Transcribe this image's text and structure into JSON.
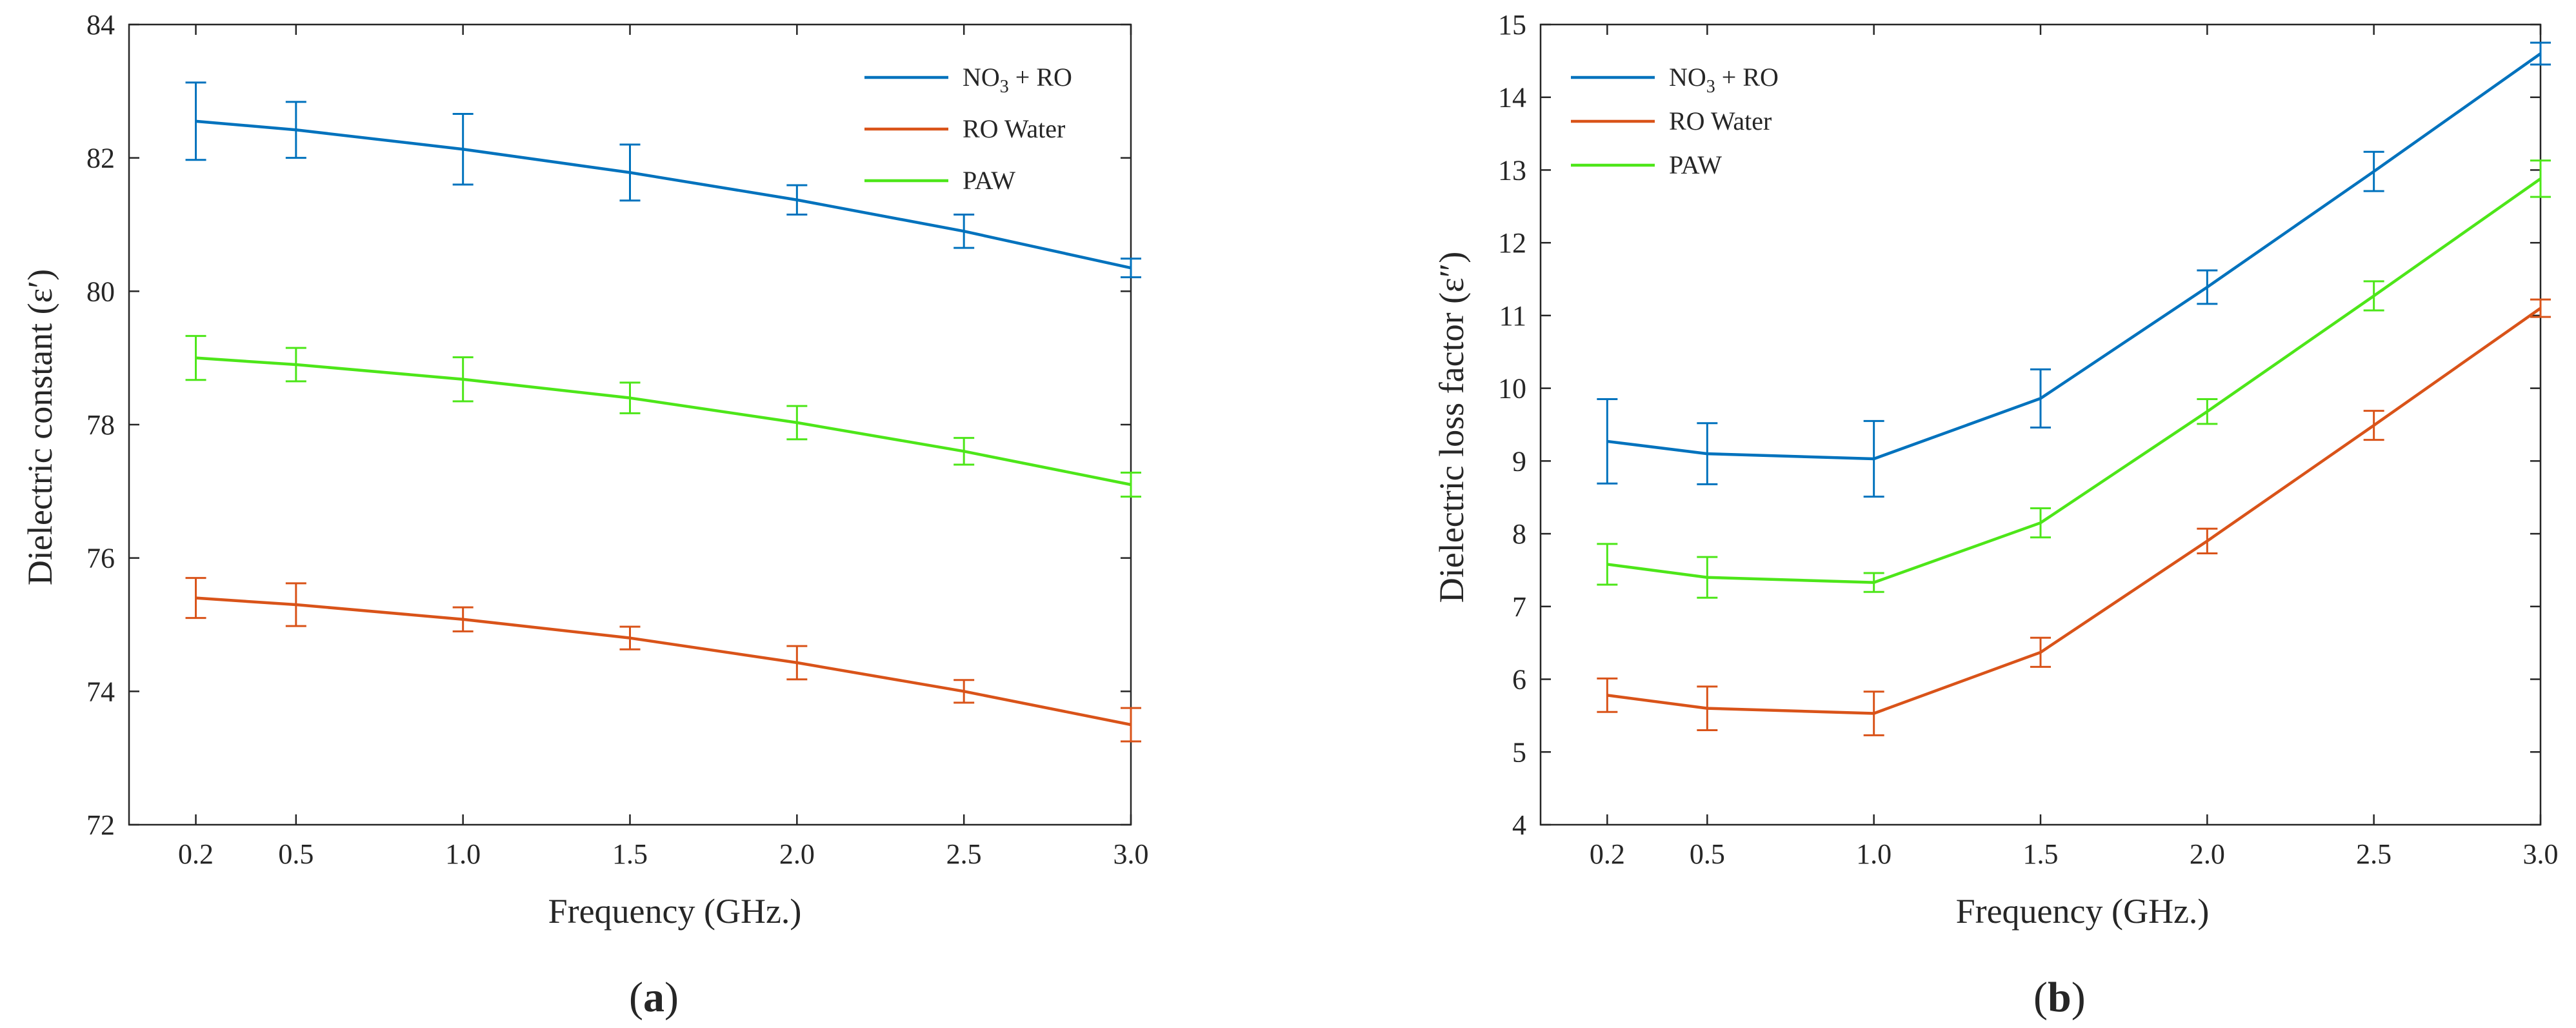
{
  "chart_data": [
    {
      "type": "line",
      "panel_label": "a",
      "xlabel": "Frequency (GHz.)",
      "ylabel": "Dielectric constant (ε′)",
      "x": [
        0.2,
        0.5,
        1.0,
        1.5,
        2.0,
        2.5,
        3.0
      ],
      "x_tick_labels": [
        "0.2",
        "0.5",
        "1.0",
        "1.5",
        "2.0",
        "2.5",
        "3.0"
      ],
      "xlim": [
        0,
        3.0
      ],
      "ylim": [
        72,
        84
      ],
      "y_ticks": [
        72,
        74,
        76,
        78,
        80,
        82,
        84
      ],
      "error_bars": true,
      "grid": false,
      "legend_position": "top-right",
      "series": [
        {
          "name": "NO3 + RO",
          "color": "#0072BD",
          "values": [
            82.55,
            82.42,
            82.13,
            81.78,
            81.37,
            80.9,
            80.35
          ],
          "errors": [
            0.58,
            0.42,
            0.53,
            0.42,
            0.22,
            0.25,
            0.14
          ]
        },
        {
          "name": "RO Water",
          "color": "#D95319",
          "values": [
            75.4,
            75.3,
            75.08,
            74.8,
            74.43,
            74.0,
            73.5
          ],
          "errors": [
            0.3,
            0.32,
            0.18,
            0.17,
            0.25,
            0.17,
            0.25
          ]
        },
        {
          "name": "PAW",
          "color": "#4DE619",
          "values": [
            79.0,
            78.9,
            78.68,
            78.4,
            78.03,
            77.6,
            77.1
          ],
          "errors": [
            0.33,
            0.25,
            0.33,
            0.23,
            0.25,
            0.2,
            0.18
          ]
        }
      ]
    },
    {
      "type": "line",
      "panel_label": "b",
      "xlabel": "Frequency (GHz.)",
      "ylabel": "Dielectric loss factor (ε″)",
      "x": [
        0.2,
        0.5,
        1.0,
        1.5,
        2.0,
        2.5,
        3.0
      ],
      "x_tick_labels": [
        "0.2",
        "0.5",
        "1.0",
        "1.5",
        "2.0",
        "2.5",
        "3.0"
      ],
      "xlim": [
        0,
        3.0
      ],
      "ylim": [
        4,
        15
      ],
      "y_ticks": [
        4,
        5,
        6,
        7,
        8,
        9,
        10,
        11,
        12,
        13,
        14,
        15
      ],
      "error_bars": true,
      "grid": false,
      "legend_position": "top-left",
      "series": [
        {
          "name": "NO3 + RO",
          "color": "#0072BD",
          "values": [
            9.27,
            9.1,
            9.03,
            9.86,
            11.39,
            12.98,
            14.6
          ],
          "errors": [
            0.58,
            0.42,
            0.52,
            0.4,
            0.23,
            0.27,
            0.15
          ]
        },
        {
          "name": "RO Water",
          "color": "#D95319",
          "values": [
            5.78,
            5.6,
            5.53,
            6.37,
            7.9,
            9.49,
            11.1
          ],
          "errors": [
            0.23,
            0.3,
            0.3,
            0.2,
            0.17,
            0.2,
            0.12
          ]
        },
        {
          "name": "PAW",
          "color": "#4DE619",
          "values": [
            7.58,
            7.4,
            7.33,
            8.15,
            9.68,
            11.27,
            12.88
          ],
          "errors": [
            0.28,
            0.28,
            0.13,
            0.2,
            0.17,
            0.2,
            0.25
          ]
        }
      ]
    }
  ]
}
